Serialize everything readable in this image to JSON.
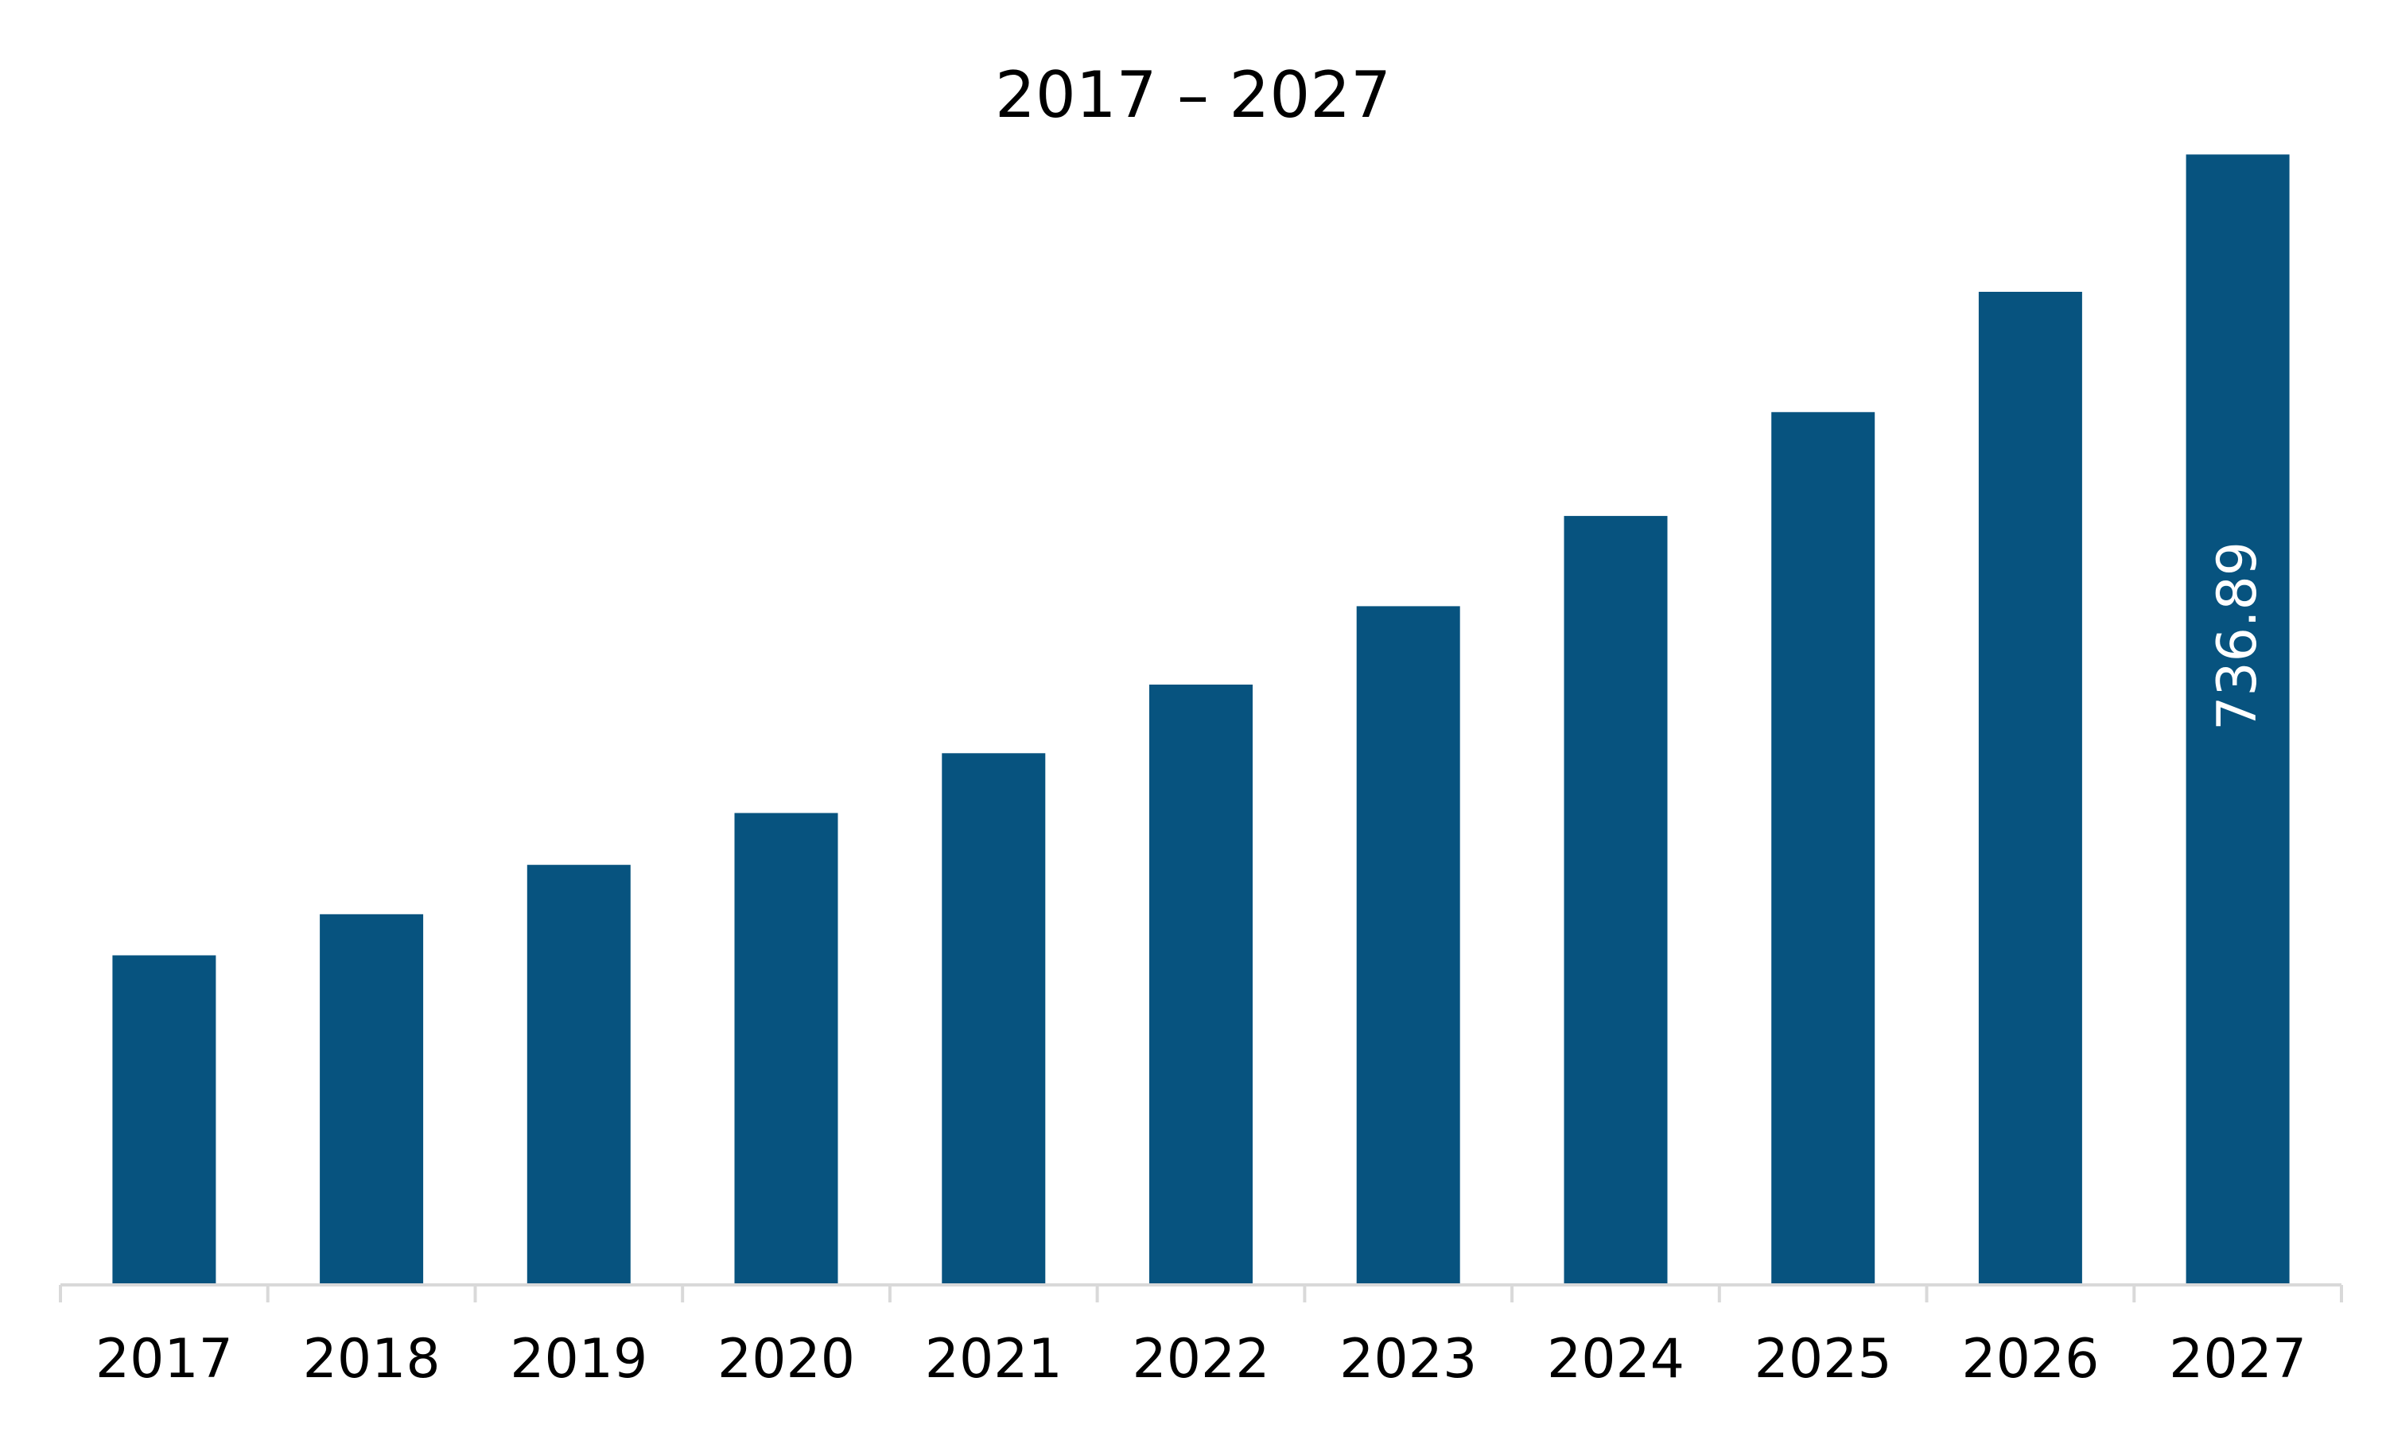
{
  "chart_data": {
    "type": "bar",
    "title": "2017 – 2027",
    "xlabel": "",
    "ylabel": "",
    "categories": [
      "2017",
      "2018",
      "2019",
      "2020",
      "2021",
      "2022",
      "2023",
      "2024",
      "2025",
      "2026",
      "2027"
    ],
    "values": [
      214.83,
      241.66,
      273.84,
      307.6,
      346.58,
      391.35,
      442.44,
      501.26,
      568.95,
      647.38,
      736.89
    ],
    "data_labels": [
      "",
      "",
      "",
      "",
      "",
      "",
      "",
      "",
      "",
      "",
      "736.89"
    ],
    "ylim": [
      0,
      741.2
    ],
    "grid": false,
    "legend": "none",
    "bar_color": "#07537F",
    "axis_color": "#D9D9D9"
  }
}
